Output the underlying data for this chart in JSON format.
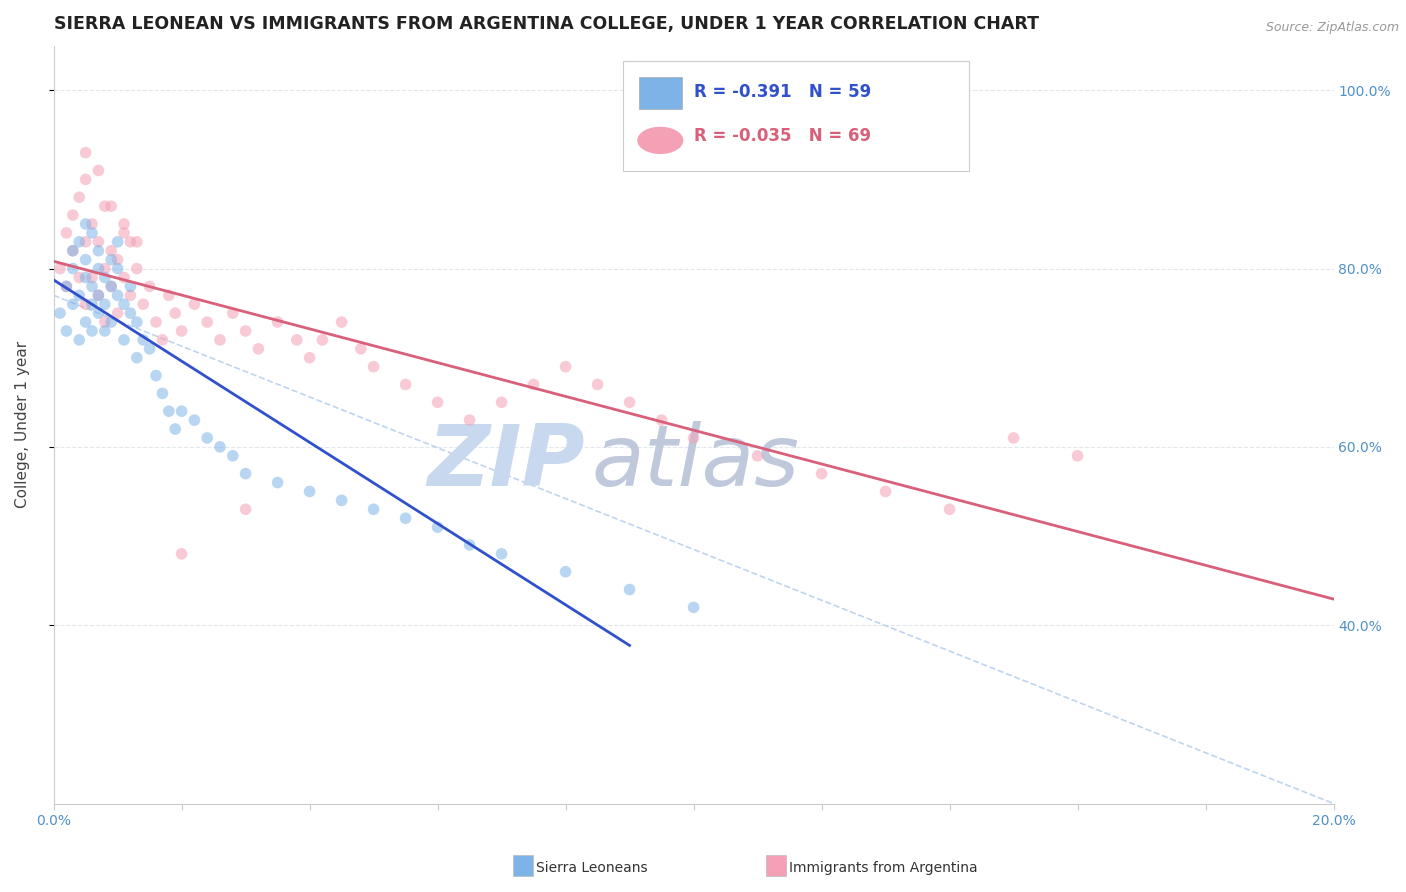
{
  "title": "SIERRA LEONEAN VS IMMIGRANTS FROM ARGENTINA COLLEGE, UNDER 1 YEAR CORRELATION CHART",
  "source_text": "Source: ZipAtlas.com",
  "ylabel": "College, Under 1 year",
  "xlim": [
    0.0,
    0.2
  ],
  "ylim": [
    0.2,
    1.05
  ],
  "yticks": [
    0.4,
    0.6,
    0.8,
    1.0
  ],
  "yticklabels_right": [
    "40.0%",
    "60.0%",
    "80.0%",
    "100.0%"
  ],
  "legend1_R": "-0.391",
  "legend1_N": "59",
  "legend2_R": "-0.035",
  "legend2_N": "69",
  "sierra_color": "#7EB3E8",
  "argentina_color": "#F4A0B5",
  "trend_blue": "#3050CC",
  "trend_pink": "#D8607A",
  "diagonal_color": "#B8D0EC",
  "watermark_zip": "ZIP",
  "watermark_atlas": "atlas",
  "watermark_zip_color": "#C8D8EE",
  "watermark_atlas_color": "#C0C8DC",
  "background_color": "#FFFFFF",
  "grid_color": "#E0E8EE",
  "title_fontsize": 12.5,
  "axis_label_fontsize": 11,
  "tick_fontsize": 10,
  "scatter_size": 70,
  "scatter_alpha": 0.55,
  "sierra_x": [
    0.001,
    0.002,
    0.002,
    0.003,
    0.003,
    0.003,
    0.004,
    0.004,
    0.004,
    0.005,
    0.005,
    0.005,
    0.005,
    0.006,
    0.006,
    0.006,
    0.006,
    0.007,
    0.007,
    0.007,
    0.007,
    0.008,
    0.008,
    0.008,
    0.009,
    0.009,
    0.009,
    0.01,
    0.01,
    0.01,
    0.011,
    0.011,
    0.012,
    0.012,
    0.013,
    0.013,
    0.014,
    0.015,
    0.016,
    0.017,
    0.018,
    0.019,
    0.02,
    0.022,
    0.024,
    0.026,
    0.028,
    0.03,
    0.035,
    0.04,
    0.045,
    0.05,
    0.055,
    0.06,
    0.065,
    0.07,
    0.08,
    0.09,
    0.1
  ],
  "sierra_y": [
    0.75,
    0.78,
    0.73,
    0.8,
    0.76,
    0.82,
    0.77,
    0.83,
    0.72,
    0.79,
    0.85,
    0.74,
    0.81,
    0.84,
    0.78,
    0.76,
    0.73,
    0.82,
    0.8,
    0.77,
    0.75,
    0.79,
    0.76,
    0.73,
    0.81,
    0.78,
    0.74,
    0.77,
    0.8,
    0.83,
    0.76,
    0.72,
    0.75,
    0.78,
    0.74,
    0.7,
    0.72,
    0.71,
    0.68,
    0.66,
    0.64,
    0.62,
    0.64,
    0.63,
    0.61,
    0.6,
    0.59,
    0.57,
    0.56,
    0.55,
    0.54,
    0.53,
    0.52,
    0.51,
    0.49,
    0.48,
    0.46,
    0.44,
    0.42
  ],
  "argentina_x": [
    0.001,
    0.002,
    0.002,
    0.003,
    0.003,
    0.004,
    0.004,
    0.005,
    0.005,
    0.005,
    0.006,
    0.006,
    0.007,
    0.007,
    0.008,
    0.008,
    0.008,
    0.009,
    0.009,
    0.01,
    0.01,
    0.011,
    0.011,
    0.012,
    0.012,
    0.013,
    0.014,
    0.015,
    0.016,
    0.017,
    0.018,
    0.019,
    0.02,
    0.022,
    0.024,
    0.026,
    0.028,
    0.03,
    0.032,
    0.035,
    0.038,
    0.04,
    0.042,
    0.045,
    0.048,
    0.05,
    0.055,
    0.06,
    0.065,
    0.07,
    0.075,
    0.08,
    0.085,
    0.09,
    0.095,
    0.1,
    0.11,
    0.12,
    0.13,
    0.14,
    0.15,
    0.005,
    0.007,
    0.009,
    0.011,
    0.013,
    0.02,
    0.03,
    0.16
  ],
  "argentina_y": [
    0.8,
    0.84,
    0.78,
    0.86,
    0.82,
    0.88,
    0.79,
    0.9,
    0.83,
    0.76,
    0.85,
    0.79,
    0.83,
    0.77,
    0.8,
    0.87,
    0.74,
    0.82,
    0.78,
    0.81,
    0.75,
    0.84,
    0.79,
    0.77,
    0.83,
    0.8,
    0.76,
    0.78,
    0.74,
    0.72,
    0.77,
    0.75,
    0.73,
    0.76,
    0.74,
    0.72,
    0.75,
    0.73,
    0.71,
    0.74,
    0.72,
    0.7,
    0.72,
    0.74,
    0.71,
    0.69,
    0.67,
    0.65,
    0.63,
    0.65,
    0.67,
    0.69,
    0.67,
    0.65,
    0.63,
    0.61,
    0.59,
    0.57,
    0.55,
    0.53,
    0.61,
    0.93,
    0.91,
    0.87,
    0.85,
    0.83,
    0.48,
    0.53,
    0.59
  ]
}
